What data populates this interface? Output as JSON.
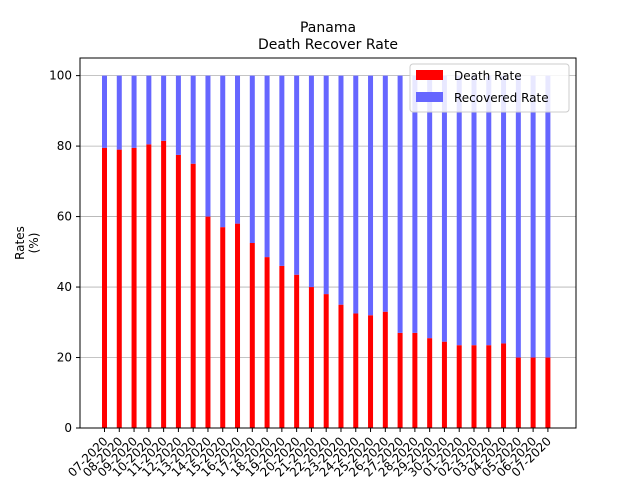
{
  "chart_data": {
    "type": "bar",
    "stacked": true,
    "title": "Panama",
    "subtitle": "Death Recover Rate",
    "ylabel": "Rates\n(%)",
    "xlabel": "",
    "ylim": [
      0,
      105
    ],
    "yticks": [
      0,
      20,
      40,
      60,
      80,
      100
    ],
    "grid": "horizontal",
    "legend_position": "top-right",
    "categories": [
      "07-2020",
      "08-2020",
      "09-2020",
      "10-2020",
      "11-2020",
      "12-2020",
      "13-2020",
      "14-2020",
      "15-2020",
      "16-2020",
      "17-2020",
      "18-2020",
      "19-2020",
      "20-2020",
      "21-2020",
      "22-2020",
      "23-2020",
      "24-2020",
      "25-2020",
      "26-2020",
      "27-2020",
      "28-2020",
      "29-2020",
      "30-2020",
      "01-2020",
      "02-2020",
      "03-2020",
      "04-2020",
      "05-2020",
      "06-2020",
      "07-2020"
    ],
    "series": [
      {
        "name": "Death Rate",
        "color": "#ff0000",
        "values": [
          79.5,
          79,
          79.5,
          80.5,
          81.5,
          77.5,
          75,
          60,
          57,
          58,
          52.5,
          48.5,
          46,
          43.5,
          40,
          38,
          35,
          32.5,
          32,
          33,
          27,
          27,
          25.5,
          24.5,
          23.5,
          23.5,
          23.5,
          24,
          20,
          20,
          20
        ]
      },
      {
        "name": "Recovered Rate",
        "color": "#6666ff",
        "values": [
          20.5,
          21,
          20.5,
          19.5,
          18.5,
          22.5,
          25,
          40,
          43,
          42,
          47.5,
          51.5,
          54,
          56.5,
          60,
          62,
          65,
          67.5,
          68,
          67,
          73,
          73,
          74.5,
          75.5,
          76.5,
          76.5,
          76.5,
          76,
          80,
          80,
          80
        ]
      }
    ]
  }
}
